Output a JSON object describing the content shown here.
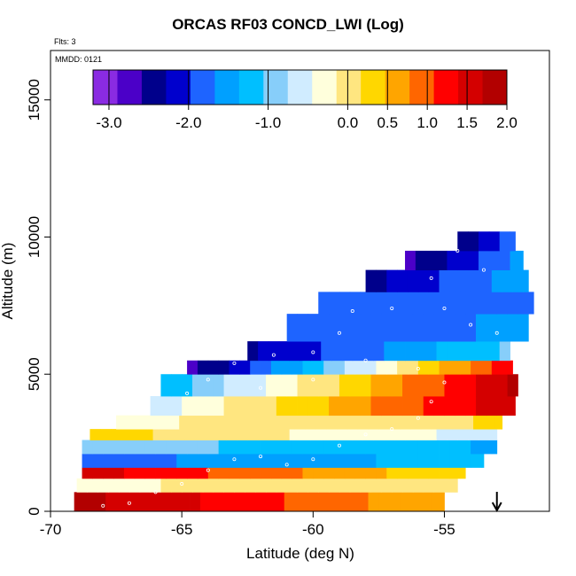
{
  "chart_data": {
    "type": "heatmap",
    "title": "ORCAS RF03 CONCD_LWI (Log)",
    "flights_note": "Flts: 3",
    "mmdd_note": "MMDD: 0121",
    "xlabel": "Latitude (deg N)",
    "ylabel": "Altitude (m)",
    "xlim": [
      -70,
      -51
    ],
    "ylim": [
      0,
      16800
    ],
    "xticks": [
      -70,
      -65,
      -60,
      -55
    ],
    "xtick_labels": [
      "-70",
      "-65",
      "-60",
      "-55"
    ],
    "yticks": [
      0,
      5000,
      10000,
      15000
    ],
    "ytick_labels": [
      "0",
      "5000",
      "10000",
      "15000"
    ],
    "colorbar": {
      "range": [
        -3.2,
        2.0
      ],
      "ticks": [
        -3.0,
        -2.0,
        -1.0,
        0.0,
        0.5,
        1.0,
        1.5,
        2.0
      ],
      "tick_labels": [
        "-3.0",
        "-2.0",
        "-1.0",
        "0.0",
        "0.5",
        "1.0",
        "1.5",
        "2.0"
      ],
      "colors": [
        "#8a2be2",
        "#4b00c8",
        "#00008b",
        "#0000cd",
        "#1e64ff",
        "#00a0ff",
        "#00bfff",
        "#87cefa",
        "#d0ecff",
        "#ffffdc",
        "#ffe680",
        "#ffd700",
        "#ffa500",
        "#ff6600",
        "#ff0000",
        "#d40000",
        "#b20000"
      ]
    },
    "bands": [
      {
        "alt_bottom": 0,
        "alt_top": 700,
        "lat_start": -69.1,
        "lat_end": -55.0,
        "v_start": 1.8,
        "v_end": 0.5
      },
      {
        "alt_bottom": 700,
        "alt_top": 1200,
        "lat_start": -69.0,
        "lat_end": -54.5,
        "v_start": -0.2,
        "v_end": 0.1
      },
      {
        "alt_bottom": 1200,
        "alt_top": 1600,
        "lat_start": -68.8,
        "lat_end": -54.2,
        "v_start": 1.5,
        "v_end": 0.2
      },
      {
        "alt_bottom": 1600,
        "alt_top": 2100,
        "lat_start": -68.8,
        "lat_end": -53.5,
        "v_start": -1.8,
        "v_end": -1.2
      },
      {
        "alt_bottom": 2100,
        "alt_top": 2600,
        "lat_start": -68.8,
        "lat_end": -53.0,
        "v_start": -0.9,
        "v_end": -1.4
      },
      {
        "alt_bottom": 2600,
        "alt_top": 3000,
        "lat_start": -68.5,
        "lat_end": -53.0,
        "v_start": 0.3,
        "v_end": -0.6
      },
      {
        "alt_bottom": 3000,
        "alt_top": 3500,
        "lat_start": -67.5,
        "lat_end": -52.8,
        "v_start": -0.2,
        "v_end": 0.2
      },
      {
        "alt_bottom": 3500,
        "alt_top": 4200,
        "lat_start": -66.2,
        "lat_end": -52.3,
        "v_start": -0.6,
        "v_end": 1.7
      },
      {
        "alt_bottom": 4200,
        "alt_top": 5000,
        "lat_start": -65.8,
        "lat_end": -52.2,
        "v_start": -1.3,
        "v_end": 1.8
      },
      {
        "alt_bottom": 5000,
        "alt_top": 5500,
        "lat_start": -64.8,
        "lat_end": -52.4,
        "v_start": -2.7,
        "v_end": 1.4
      },
      {
        "alt_bottom": 5500,
        "alt_top": 6200,
        "lat_start": -62.5,
        "lat_end": -52.5,
        "v_start": -2.3,
        "v_end": -1.0
      },
      {
        "alt_bottom": 6200,
        "alt_top": 7200,
        "lat_start": -61.0,
        "lat_end": -51.8,
        "v_start": -1.9,
        "v_end": -1.6
      },
      {
        "alt_bottom": 7200,
        "alt_top": 8000,
        "lat_start": -59.8,
        "lat_end": -51.6,
        "v_start": -1.8,
        "v_end": -1.7
      },
      {
        "alt_bottom": 8000,
        "alt_top": 8800,
        "lat_start": -58.0,
        "lat_end": -51.8,
        "v_start": -2.4,
        "v_end": -1.4
      },
      {
        "alt_bottom": 8800,
        "alt_top": 9500,
        "lat_start": -56.5,
        "lat_end": -52.0,
        "v_start": -2.6,
        "v_end": -1.5
      },
      {
        "alt_bottom": 9500,
        "alt_top": 10200,
        "lat_start": -54.5,
        "lat_end": -52.3,
        "v_start": -2.5,
        "v_end": -1.6
      }
    ],
    "flight_track": [
      {
        "lat": -68.0,
        "alt": 200
      },
      {
        "lat": -67.0,
        "alt": 300
      },
      {
        "lat": -66.0,
        "alt": 700
      },
      {
        "lat": -65.0,
        "alt": 1000
      },
      {
        "lat": -64.0,
        "alt": 1500
      },
      {
        "lat": -63.0,
        "alt": 1900
      },
      {
        "lat": -62.0,
        "alt": 2000
      },
      {
        "lat": -61.0,
        "alt": 1700
      },
      {
        "lat": -60.0,
        "alt": 1900
      },
      {
        "lat": -59.0,
        "alt": 2400
      },
      {
        "lat": -58.0,
        "alt": 2800
      },
      {
        "lat": -57.0,
        "alt": 3000
      },
      {
        "lat": -56.0,
        "alt": 3400
      },
      {
        "lat": -55.5,
        "alt": 4000
      },
      {
        "lat": -55.0,
        "alt": 4700
      },
      {
        "lat": -56.0,
        "alt": 5200
      },
      {
        "lat": -58.0,
        "alt": 5500
      },
      {
        "lat": -60.0,
        "alt": 5800
      },
      {
        "lat": -61.5,
        "alt": 5700
      },
      {
        "lat": -63.0,
        "alt": 5400
      },
      {
        "lat": -64.0,
        "alt": 4800
      },
      {
        "lat": -64.8,
        "alt": 4300
      },
      {
        "lat": -62.0,
        "alt": 4500
      },
      {
        "lat": -60.0,
        "alt": 4800
      },
      {
        "lat": -59.0,
        "alt": 6500
      },
      {
        "lat": -58.5,
        "alt": 7300
      },
      {
        "lat": -57.0,
        "alt": 7400
      },
      {
        "lat": -55.0,
        "alt": 7400
      },
      {
        "lat": -54.0,
        "alt": 6800
      },
      {
        "lat": -53.0,
        "alt": 6500
      },
      {
        "lat": -55.5,
        "alt": 8500
      },
      {
        "lat": -54.5,
        "alt": 9500
      },
      {
        "lat": -53.5,
        "alt": 8800
      }
    ],
    "arrow_marker": {
      "lat": -53.0,
      "label": "down-arrow"
    }
  }
}
